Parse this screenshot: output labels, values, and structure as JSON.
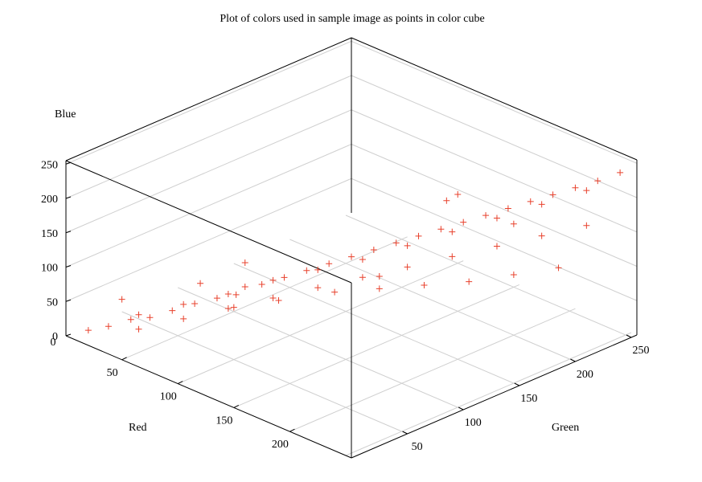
{
  "chart_data": {
    "type": "scatter",
    "title": "Plot of colors used in sample image as points in color cube",
    "xlabel": "Red",
    "ylabel": "Green",
    "zlabel": "Blue",
    "xlim": [
      0,
      255
    ],
    "ylim": [
      0,
      255
    ],
    "zlim": [
      0,
      255
    ],
    "x_ticks": [
      "50",
      "100",
      "150",
      "200"
    ],
    "y_ticks": [
      "50",
      "100",
      "150",
      "200",
      "250"
    ],
    "z_ticks": [
      "0",
      "50",
      "100",
      "150",
      "200",
      "250"
    ],
    "grid": true,
    "point_marker": "+",
    "point_color": "#e8412c",
    "series": [
      {
        "points": [
          [
            10,
            10,
            8
          ],
          [
            20,
            18,
            15
          ],
          [
            30,
            28,
            25
          ],
          [
            40,
            35,
            30
          ],
          [
            50,
            45,
            40
          ],
          [
            60,
            55,
            50
          ],
          [
            70,
            65,
            58
          ],
          [
            80,
            72,
            65
          ],
          [
            90,
            85,
            78
          ],
          [
            100,
            95,
            88
          ],
          [
            110,
            105,
            98
          ],
          [
            120,
            115,
            108
          ],
          [
            130,
            125,
            118
          ],
          [
            140,
            135,
            128
          ],
          [
            150,
            145,
            138
          ],
          [
            160,
            155,
            148
          ],
          [
            170,
            165,
            158
          ],
          [
            180,
            175,
            168
          ],
          [
            190,
            185,
            178
          ],
          [
            200,
            195,
            188
          ],
          [
            210,
            205,
            198
          ],
          [
            220,
            215,
            208
          ],
          [
            230,
            225,
            218
          ],
          [
            240,
            235,
            228
          ],
          [
            250,
            245,
            240
          ],
          [
            25,
            40,
            20
          ],
          [
            45,
            60,
            35
          ],
          [
            65,
            80,
            50
          ],
          [
            85,
            100,
            70
          ],
          [
            105,
            120,
            85
          ],
          [
            125,
            140,
            100
          ],
          [
            145,
            160,
            120
          ],
          [
            165,
            180,
            140
          ],
          [
            185,
            200,
            160
          ],
          [
            205,
            220,
            180
          ],
          [
            225,
            240,
            200
          ],
          [
            40,
            25,
            20
          ],
          [
            60,
            45,
            35
          ],
          [
            80,
            65,
            50
          ],
          [
            100,
            85,
            65
          ],
          [
            120,
            105,
            80
          ],
          [
            140,
            125,
            95
          ],
          [
            160,
            145,
            110
          ],
          [
            180,
            165,
            125
          ],
          [
            200,
            185,
            140
          ],
          [
            220,
            205,
            155
          ],
          [
            240,
            225,
            170
          ],
          [
            60,
            90,
            20
          ],
          [
            80,
            110,
            30
          ],
          [
            100,
            140,
            35
          ],
          [
            120,
            160,
            40
          ],
          [
            140,
            180,
            45
          ],
          [
            160,
            200,
            50
          ],
          [
            180,
            220,
            60
          ],
          [
            200,
            240,
            70
          ],
          [
            130,
            210,
            140
          ],
          [
            170,
            230,
            120
          ],
          [
            100,
            180,
            30
          ],
          [
            40,
            120,
            15
          ],
          [
            70,
            50,
            90
          ],
          [
            90,
            70,
            120
          ],
          [
            30,
            20,
            60
          ],
          [
            200,
            150,
            240
          ]
        ]
      }
    ]
  }
}
